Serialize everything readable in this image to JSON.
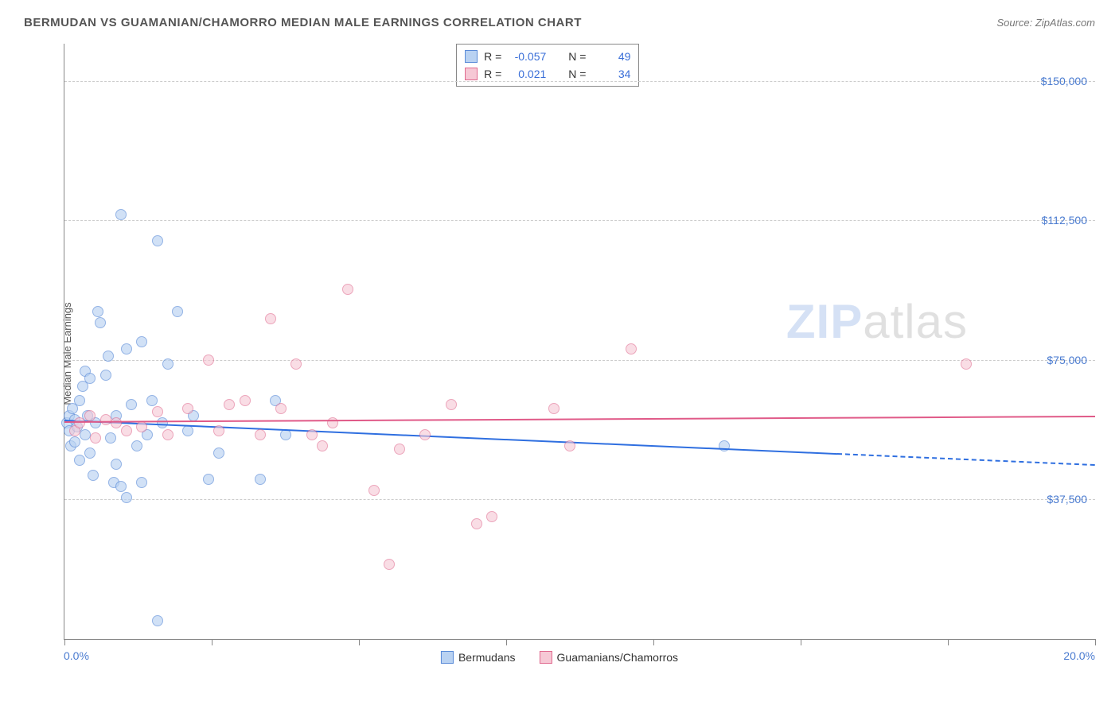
{
  "title": "BERMUDAN VS GUAMANIAN/CHAMORRO MEDIAN MALE EARNINGS CORRELATION CHART",
  "source": "Source: ZipAtlas.com",
  "ylabel": "Median Male Earnings",
  "watermark_zip": "ZIP",
  "watermark_atlas": "atlas",
  "chart": {
    "type": "scatter",
    "xlim": [
      0,
      20
    ],
    "ylim": [
      0,
      160000
    ],
    "x_tick_start_label": "0.0%",
    "x_tick_end_label": "20.0%",
    "y_grid": [
      37500,
      75000,
      112500,
      150000
    ],
    "y_grid_labels": [
      "$37,500",
      "$75,000",
      "$112,500",
      "$150,000"
    ],
    "x_minor_ticks": [
      0,
      2.86,
      5.71,
      8.57,
      11.43,
      14.29,
      17.14,
      20
    ],
    "background_color": "#ffffff",
    "grid_color": "#cccccc",
    "axis_color": "#888888",
    "tick_label_color": "#4a7bd0",
    "marker_radius": 7,
    "marker_stroke_width": 1.2,
    "series": [
      {
        "name": "Bermudans",
        "fill": "#b9d2f2",
        "stroke": "#5a8bd8",
        "fill_opacity": 0.65,
        "R": "-0.057",
        "N": "49",
        "trend": {
          "x1": 0,
          "y1": 59000,
          "x2": 15,
          "y2": 50000,
          "color": "#2f6fe0",
          "width": 2,
          "dash_after_x": 15,
          "x_end": 20,
          "y_end": 47000
        },
        "points": [
          [
            0.05,
            58000
          ],
          [
            0.1,
            60000
          ],
          [
            0.1,
            56000
          ],
          [
            0.12,
            52000
          ],
          [
            0.15,
            62000
          ],
          [
            0.2,
            59000
          ],
          [
            0.2,
            53000
          ],
          [
            0.25,
            57000
          ],
          [
            0.3,
            64000
          ],
          [
            0.3,
            48000
          ],
          [
            0.35,
            68000
          ],
          [
            0.4,
            72000
          ],
          [
            0.4,
            55000
          ],
          [
            0.45,
            60000
          ],
          [
            0.5,
            70000
          ],
          [
            0.5,
            50000
          ],
          [
            0.55,
            44000
          ],
          [
            0.6,
            58000
          ],
          [
            0.65,
            88000
          ],
          [
            0.7,
            85000
          ],
          [
            0.8,
            71000
          ],
          [
            0.85,
            76000
          ],
          [
            0.9,
            54000
          ],
          [
            0.95,
            42000
          ],
          [
            1.0,
            60000
          ],
          [
            1.0,
            47000
          ],
          [
            1.1,
            41000
          ],
          [
            1.1,
            114000
          ],
          [
            1.2,
            78000
          ],
          [
            1.2,
            38000
          ],
          [
            1.3,
            63000
          ],
          [
            1.4,
            52000
          ],
          [
            1.5,
            80000
          ],
          [
            1.5,
            42000
          ],
          [
            1.6,
            55000
          ],
          [
            1.7,
            64000
          ],
          [
            1.8,
            107000
          ],
          [
            1.8,
            5000
          ],
          [
            1.9,
            58000
          ],
          [
            2.0,
            74000
          ],
          [
            2.2,
            88000
          ],
          [
            2.4,
            56000
          ],
          [
            2.5,
            60000
          ],
          [
            2.8,
            43000
          ],
          [
            3.0,
            50000
          ],
          [
            3.8,
            43000
          ],
          [
            4.1,
            64000
          ],
          [
            4.3,
            55000
          ],
          [
            12.8,
            52000
          ]
        ]
      },
      {
        "name": "Guamanians/Chamorros",
        "fill": "#f6c8d5",
        "stroke": "#e06a8f",
        "fill_opacity": 0.6,
        "R": "0.021",
        "N": "34",
        "trend": {
          "x1": 0,
          "y1": 58500,
          "x2": 20,
          "y2": 60000,
          "color": "#e05a88",
          "width": 2
        },
        "points": [
          [
            0.2,
            56000
          ],
          [
            0.3,
            58000
          ],
          [
            0.5,
            60000
          ],
          [
            0.6,
            54000
          ],
          [
            0.8,
            59000
          ],
          [
            1.0,
            58000
          ],
          [
            1.2,
            56000
          ],
          [
            1.5,
            57000
          ],
          [
            1.8,
            61000
          ],
          [
            2.0,
            55000
          ],
          [
            2.4,
            62000
          ],
          [
            2.8,
            75000
          ],
          [
            3.0,
            56000
          ],
          [
            3.2,
            63000
          ],
          [
            3.5,
            64000
          ],
          [
            3.8,
            55000
          ],
          [
            4.0,
            86000
          ],
          [
            4.2,
            62000
          ],
          [
            4.5,
            74000
          ],
          [
            4.8,
            55000
          ],
          [
            5.0,
            52000
          ],
          [
            5.2,
            58000
          ],
          [
            5.5,
            94000
          ],
          [
            6.0,
            40000
          ],
          [
            6.3,
            20000
          ],
          [
            6.5,
            51000
          ],
          [
            7.0,
            55000
          ],
          [
            7.5,
            63000
          ],
          [
            8.0,
            31000
          ],
          [
            8.3,
            33000
          ],
          [
            9.5,
            62000
          ],
          [
            9.8,
            52000
          ],
          [
            11.0,
            78000
          ],
          [
            17.5,
            74000
          ]
        ]
      }
    ]
  },
  "legend": {
    "series1_label": "Bermudans",
    "series2_label": "Guamanians/Chamorros"
  },
  "stats_labels": {
    "R": "R =",
    "N": "N ="
  }
}
